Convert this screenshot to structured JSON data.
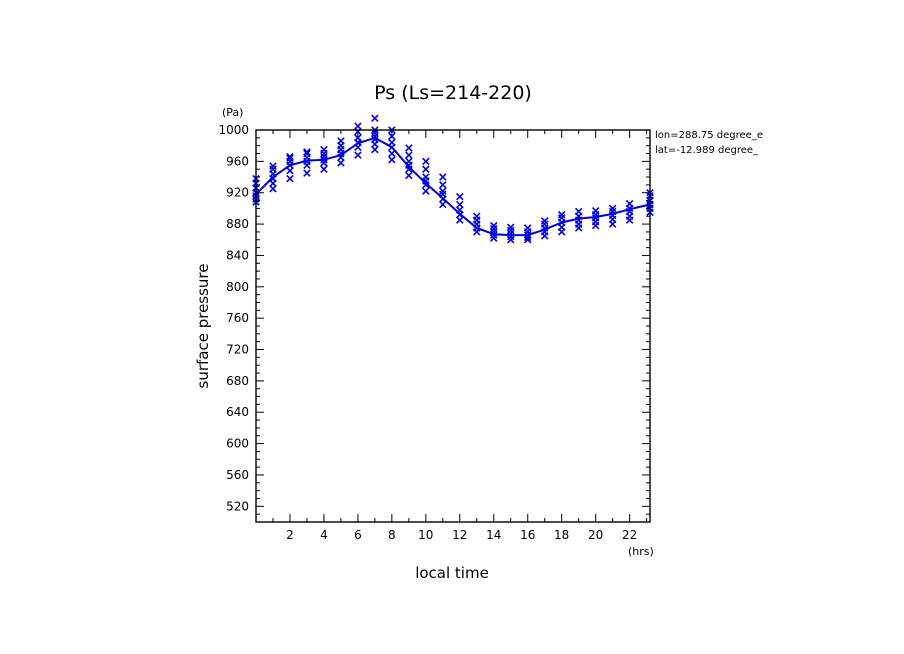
{
  "chart_data": {
    "type": "scatter",
    "title": "Ps (Ls=214-220)",
    "xlabel": "local time",
    "ylabel": "surface pressure",
    "x_unit": "(hrs)",
    "y_unit": "(Pa)",
    "xlim": [
      0,
      23.2
    ],
    "ylim": [
      500,
      1000
    ],
    "x_ticks": [
      2,
      4,
      6,
      8,
      10,
      12,
      14,
      16,
      18,
      20,
      22
    ],
    "y_ticks": [
      520,
      560,
      600,
      640,
      680,
      720,
      760,
      800,
      840,
      880,
      920,
      960,
      1000
    ],
    "info_lines": [
      "lon=288.75 degree_e",
      "lat=-12.989 degree_"
    ],
    "colors": {
      "series": "#0000dd",
      "axes": "#000000"
    },
    "grid": false,
    "mean_line": {
      "x": [
        0,
        1,
        2,
        3,
        4,
        5,
        6,
        7,
        8,
        9,
        10,
        11,
        12,
        13,
        14,
        15,
        16,
        17,
        18,
        19,
        20,
        21,
        22,
        23.2
      ],
      "y": [
        918,
        940,
        955,
        961,
        962,
        968,
        983,
        990,
        978,
        953,
        932,
        913,
        893,
        875,
        867,
        866,
        866,
        873,
        882,
        887,
        889,
        893,
        899,
        905
      ]
    },
    "points": {
      "x": [
        0,
        0,
        0,
        0,
        0,
        0,
        0,
        1,
        1,
        1,
        1,
        1,
        1,
        2,
        2,
        2,
        2,
        2,
        2,
        3,
        3,
        3,
        3,
        3,
        3,
        4,
        4,
        4,
        4,
        4,
        4,
        5,
        5,
        5,
        5,
        5,
        5,
        6,
        6,
        6,
        6,
        6,
        6,
        7,
        7,
        7,
        7,
        7,
        7,
        7,
        8,
        8,
        8,
        8,
        8,
        8,
        9,
        9,
        9,
        9,
        9,
        9,
        10,
        10,
        10,
        10,
        10,
        10,
        11,
        11,
        11,
        11,
        11,
        11,
        12,
        12,
        12,
        12,
        12,
        13,
        13,
        13,
        13,
        13,
        14,
        14,
        14,
        14,
        14,
        15,
        15,
        15,
        15,
        15,
        16,
        16,
        16,
        16,
        16,
        17,
        17,
        17,
        17,
        17,
        18,
        18,
        18,
        18,
        18,
        19,
        19,
        19,
        19,
        19,
        20,
        20,
        20,
        20,
        20,
        21,
        21,
        21,
        21,
        21,
        22,
        22,
        22,
        22,
        22,
        23.2,
        23.2,
        23.2,
        23.2,
        23.2,
        23.2
      ],
      "y": [
        908,
        912,
        916,
        920,
        926,
        932,
        938,
        925,
        932,
        938,
        944,
        950,
        954,
        938,
        948,
        955,
        960,
        964,
        966,
        945,
        955,
        960,
        965,
        970,
        972,
        950,
        958,
        962,
        966,
        970,
        975,
        958,
        965,
        970,
        975,
        980,
        986,
        968,
        978,
        984,
        990,
        998,
        1005,
        975,
        982,
        988,
        992,
        996,
        1000,
        1015,
        962,
        970,
        978,
        984,
        992,
        1000,
        942,
        950,
        955,
        960,
        968,
        977,
        922,
        930,
        935,
        940,
        950,
        960,
        905,
        912,
        918,
        922,
        930,
        940,
        885,
        892,
        898,
        905,
        915,
        870,
        875,
        880,
        885,
        890,
        862,
        866,
        870,
        874,
        878,
        860,
        864,
        868,
        872,
        876,
        860,
        863,
        866,
        870,
        875,
        865,
        870,
        875,
        880,
        884,
        870,
        876,
        882,
        888,
        892,
        875,
        880,
        885,
        890,
        896,
        878,
        883,
        888,
        892,
        897,
        880,
        886,
        891,
        896,
        900,
        885,
        890,
        896,
        900,
        906,
        895,
        900,
        905,
        910,
        916,
        920
      ]
    }
  }
}
